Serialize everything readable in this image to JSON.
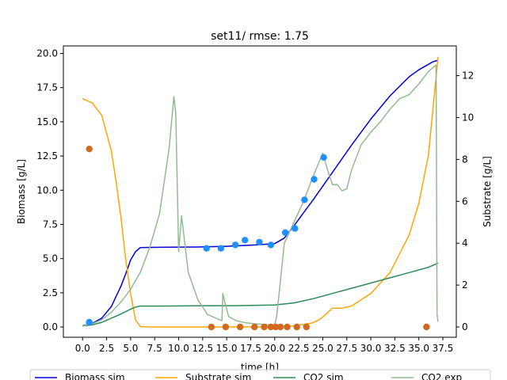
{
  "chart_data": {
    "type": "line",
    "title": "set11/ rmse: 1.75",
    "xlabel": "time [h]",
    "ylabel_left": "Biomass [g/L]",
    "ylabel_right": "Substrate [g/L]",
    "xlim": [
      -2.0,
      38.9
    ],
    "ylim_left": [
      -0.75,
      20.55
    ],
    "ylim_right": [
      -0.49,
      13.42
    ],
    "x_ticks": [
      "0.0",
      "2.5",
      "5.0",
      "7.5",
      "10.0",
      "12.5",
      "15.0",
      "17.5",
      "20.0",
      "22.5",
      "25.0",
      "27.5",
      "30.0",
      "32.5",
      "35.0",
      "37.5"
    ],
    "y_left_ticks": [
      "0.0",
      "2.5",
      "5.0",
      "7.5",
      "10.0",
      "12.5",
      "15.0",
      "17.5",
      "20.0"
    ],
    "y_right_ticks": [
      "0",
      "2",
      "4",
      "6",
      "8",
      "10",
      "12"
    ],
    "grid": false,
    "legend_position": "bottom-center",
    "colors": {
      "biomass_sim": "#0000dd",
      "substrate_sim": "#ffa500",
      "co2_sim": "#2e8b57",
      "co2_exp": "#8fbc8f",
      "biomass_exp": "#1e90ff",
      "substrate_exp": "#d2691e"
    },
    "series": [
      {
        "name": "Biomass sim",
        "axis": "left",
        "x": [
          0,
          1,
          2,
          3,
          4,
          4.5,
          5,
          5.5,
          6,
          7,
          9,
          12,
          15,
          18,
          20,
          21,
          22,
          24,
          26,
          28,
          30,
          32,
          34,
          35,
          36,
          36.5,
          37
        ],
        "y": [
          0.1,
          0.25,
          0.65,
          1.5,
          3.0,
          3.9,
          4.9,
          5.5,
          5.8,
          5.82,
          5.83,
          5.85,
          5.9,
          6.0,
          6.1,
          6.5,
          7.4,
          9.3,
          11.3,
          13.3,
          15.2,
          16.9,
          18.3,
          18.8,
          19.2,
          19.4,
          19.5
        ]
      },
      {
        "name": "Substrate sim",
        "axis": "right",
        "x": [
          0,
          1,
          2,
          3,
          3.5,
          4,
          4.5,
          5,
          5.5,
          6,
          7,
          10,
          15,
          20,
          22,
          24,
          24.8,
          25.3,
          26,
          27,
          28,
          30,
          32,
          34,
          35,
          36,
          37
        ],
        "y": [
          10.9,
          10.7,
          10.1,
          8.4,
          6.9,
          5.2,
          3.2,
          1.6,
          0.35,
          0.02,
          0,
          0,
          0,
          0,
          0.05,
          0.2,
          0.4,
          0.6,
          0.9,
          0.9,
          1.0,
          1.6,
          2.6,
          4.4,
          5.9,
          8.2,
          12.9
        ]
      },
      {
        "name": "CO2 sim",
        "axis": "right",
        "x": [
          0,
          1,
          2,
          3,
          4,
          5,
          5.5,
          6,
          8,
          12,
          16,
          20,
          22,
          24,
          26,
          28,
          30,
          32,
          34,
          36,
          37
        ],
        "y": [
          0.05,
          0.1,
          0.22,
          0.42,
          0.62,
          0.85,
          0.95,
          1.0,
          1.0,
          1.01,
          1.02,
          1.05,
          1.15,
          1.35,
          1.6,
          1.85,
          2.1,
          2.35,
          2.6,
          2.85,
          3.05
        ]
      },
      {
        "name": "CO2 exp",
        "axis": "right",
        "x": [
          0,
          1,
          2,
          3,
          4,
          5,
          6,
          7,
          8,
          9,
          9.5,
          9.7,
          10,
          10.3,
          11,
          12,
          13,
          14,
          14.5,
          14.6,
          14.8,
          15.2,
          16,
          17,
          18,
          19,
          19.5,
          20,
          20.2,
          20.5,
          21,
          22,
          23,
          24,
          25,
          25.5,
          26,
          26.5,
          27,
          27.5,
          28,
          29,
          30,
          31,
          32,
          33,
          34,
          35,
          36,
          36.5,
          36.8,
          36.9,
          37
        ],
        "y": [
          0.05,
          0.15,
          0.35,
          0.7,
          1.2,
          1.8,
          2.6,
          3.8,
          5.4,
          8.5,
          11.0,
          10.2,
          3.6,
          5.3,
          2.6,
          1.3,
          0.6,
          0.4,
          0.3,
          1.6,
          1.2,
          0.5,
          0.3,
          0.2,
          0.15,
          0.12,
          0.1,
          0.1,
          0.5,
          1.8,
          4.0,
          5.0,
          6.0,
          7.2,
          8.3,
          7.5,
          6.8,
          6.8,
          6.5,
          6.6,
          7.5,
          8.7,
          9.3,
          9.8,
          10.4,
          10.9,
          11.1,
          11.6,
          12.2,
          12.4,
          12.5,
          0.6,
          0.25
        ]
      }
    ],
    "scatter": [
      {
        "name": "Biomass exp",
        "axis": "left",
        "x": [
          0.7,
          12.9,
          14.4,
          15.9,
          16.9,
          18.4,
          19.6,
          21.1,
          22.1,
          23.1,
          24.1,
          25.1
        ],
        "y": [
          0.35,
          5.75,
          5.75,
          6.0,
          6.35,
          6.2,
          6.0,
          6.9,
          7.2,
          9.3,
          10.8,
          12.4
        ]
      },
      {
        "name": "Substrate exp",
        "axis": "right",
        "x": [
          0.7,
          13.4,
          14.9,
          16.4,
          17.9,
          18.9,
          19.6,
          20.1,
          20.6,
          21.3,
          22.3,
          23.3,
          35.8
        ],
        "y": [
          8.5,
          0,
          0,
          0,
          0,
          0,
          0,
          0,
          0,
          0,
          0,
          0,
          0
        ]
      }
    ],
    "legend": [
      "Biomass sim",
      "Substrate sim",
      "CO2 sim",
      "CO2 exp"
    ]
  }
}
